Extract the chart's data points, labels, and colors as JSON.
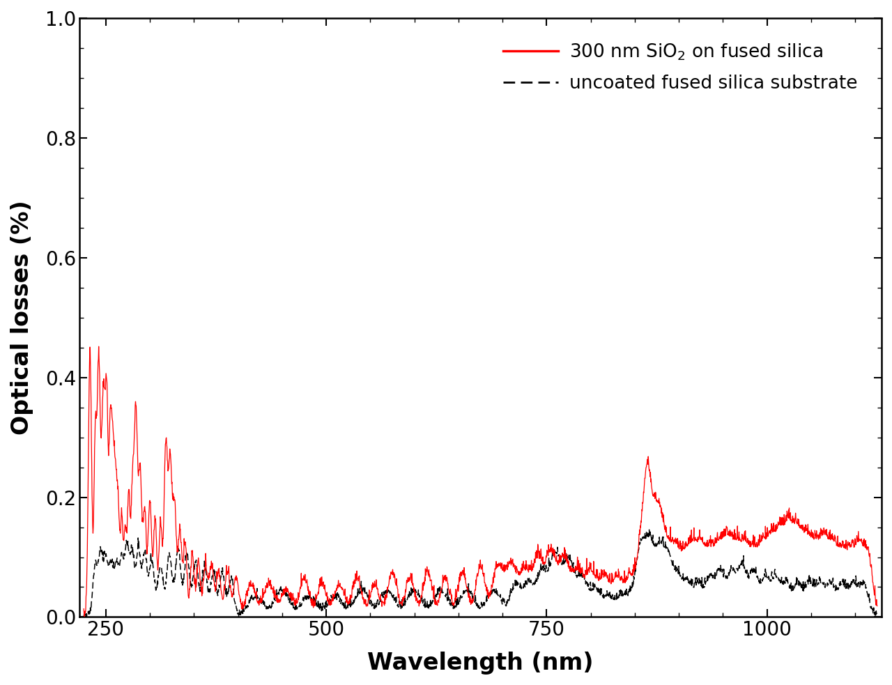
{
  "title": "",
  "xlabel": "Wavelength (nm)",
  "ylabel": "Optical losses (%)",
  "xlim": [
    220,
    1130
  ],
  "ylim": [
    0.0,
    1.0
  ],
  "yticks": [
    0.0,
    0.2,
    0.4,
    0.6,
    0.8,
    1.0
  ],
  "xticks": [
    250,
    500,
    750,
    1000
  ],
  "legend_entries_red": "300 nm SiO$_2$ on fused silica",
  "legend_entries_black": "uncoated fused silica substrate",
  "red_color": "#ff0000",
  "black_color": "#000000",
  "background_color": "#ffffff",
  "figsize": [
    12.8,
    9.83
  ],
  "dpi": 100
}
